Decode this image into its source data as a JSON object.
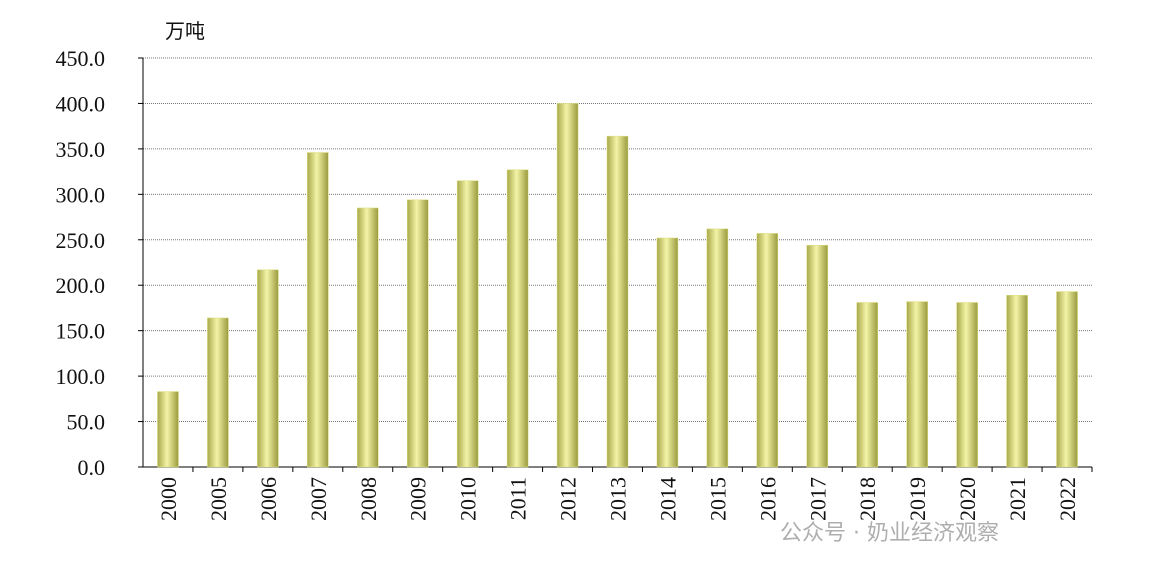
{
  "chart_data": {
    "type": "bar",
    "y_unit": "万吨",
    "categories": [
      "2000",
      "2005",
      "2006",
      "2007",
      "2008",
      "2009",
      "2010",
      "2011",
      "2012",
      "2013",
      "2014",
      "2015",
      "2016",
      "2017",
      "2018",
      "2019",
      "2020",
      "2021",
      "2022"
    ],
    "values": [
      83,
      164,
      217,
      346,
      285,
      294,
      315,
      327,
      400,
      364,
      252,
      262,
      257,
      244,
      181,
      182,
      181,
      189,
      193
    ],
    "color": "#dede7e",
    "ylim": [
      0,
      450
    ],
    "yticks": [
      {
        "value": 0,
        "label": "0.0"
      },
      {
        "value": 50,
        "label": "50.0"
      },
      {
        "value": 100,
        "label": "100.0"
      },
      {
        "value": 150,
        "label": "150.0"
      },
      {
        "value": 200,
        "label": "200.0"
      },
      {
        "value": 250,
        "label": "250.0"
      },
      {
        "value": 300,
        "label": "300.0"
      },
      {
        "value": 350,
        "label": "350.0"
      },
      {
        "value": 400,
        "label": "400.0"
      },
      {
        "value": 450,
        "label": "450.0"
      }
    ],
    "grid": true,
    "watermark": "公众号 · 奶业经济观察"
  }
}
